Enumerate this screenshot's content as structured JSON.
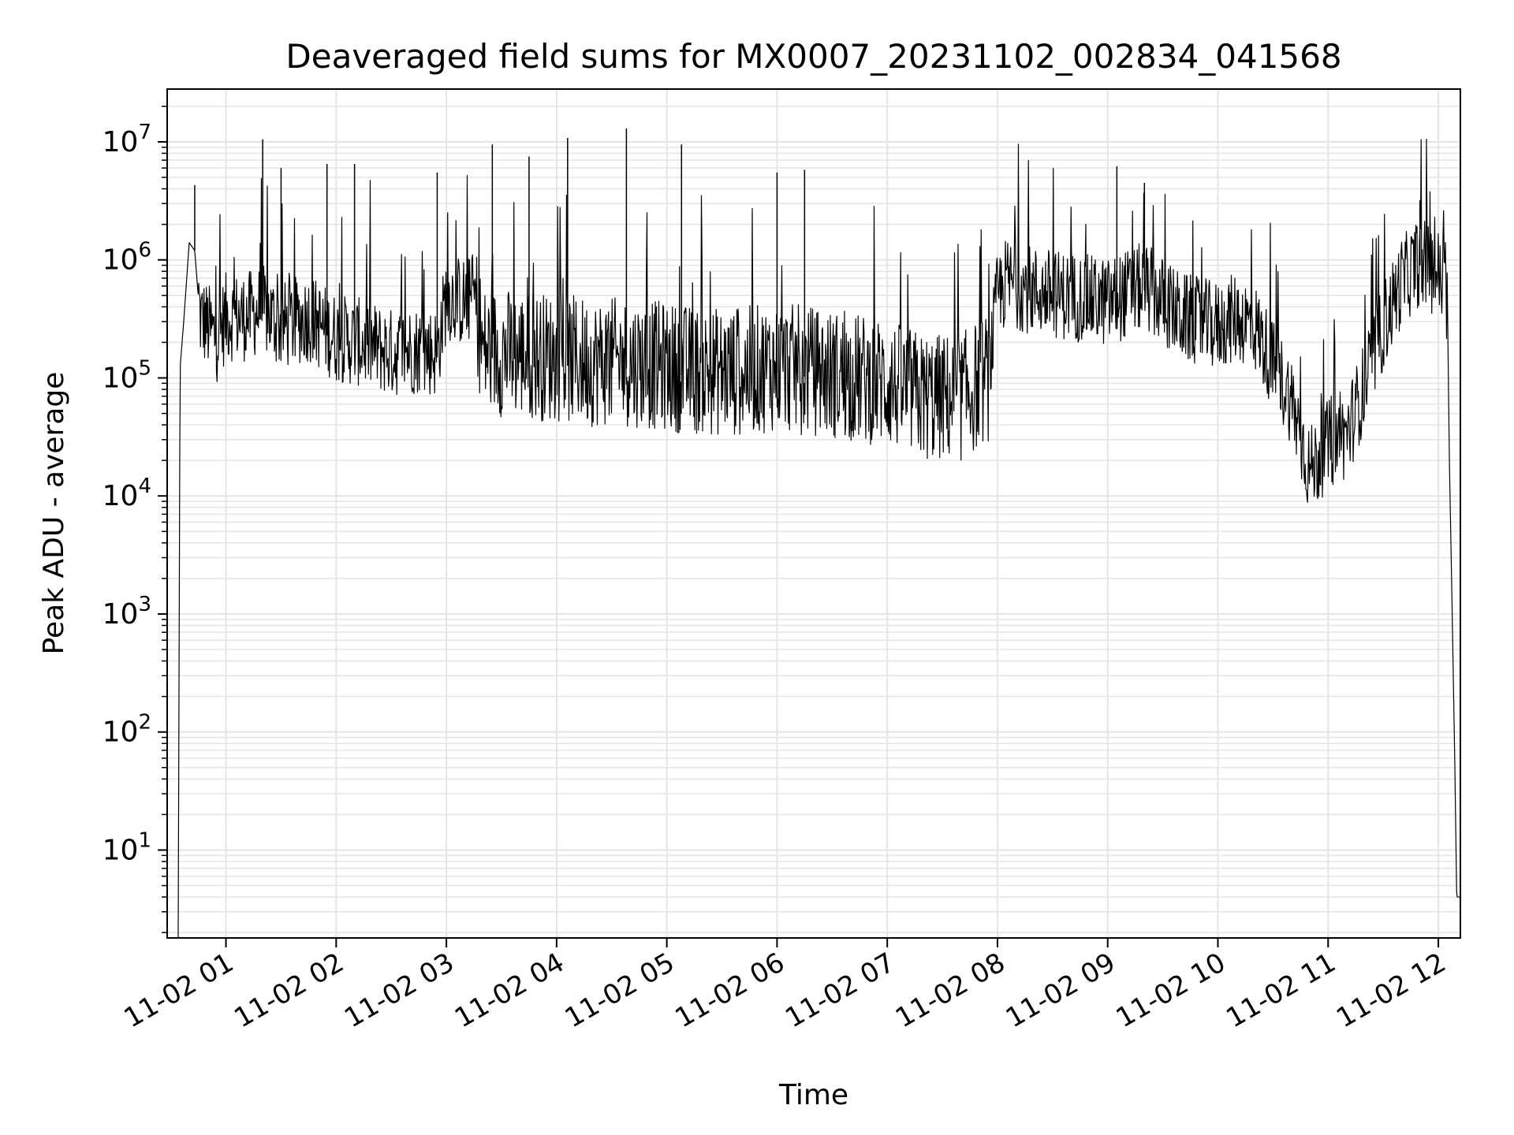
{
  "chart_data": {
    "type": "line",
    "title": "Deaveraged field sums for MX0007_20231102_002834_041568",
    "xlabel": "Time",
    "ylabel": "Peak ADU - average",
    "yscale": "log",
    "xlim": [
      "2023-11-02 00:28",
      "2023-11-02 12:12"
    ],
    "ylim": [
      1.8,
      28000000
    ],
    "grid": true,
    "line_color": "#000000",
    "grid_color": "#e5e5e5",
    "x_ticks": [
      {
        "value": "2023-11-02 01:00",
        "label": "11-02 01"
      },
      {
        "value": "2023-11-02 02:00",
        "label": "11-02 02"
      },
      {
        "value": "2023-11-02 03:00",
        "label": "11-02 03"
      },
      {
        "value": "2023-11-02 04:00",
        "label": "11-02 04"
      },
      {
        "value": "2023-11-02 05:00",
        "label": "11-02 05"
      },
      {
        "value": "2023-11-02 06:00",
        "label": "11-02 06"
      },
      {
        "value": "2023-11-02 07:00",
        "label": "11-02 07"
      },
      {
        "value": "2023-11-02 08:00",
        "label": "11-02 08"
      },
      {
        "value": "2023-11-02 09:00",
        "label": "11-02 09"
      },
      {
        "value": "2023-11-02 10:00",
        "label": "11-02 10"
      },
      {
        "value": "2023-11-02 11:00",
        "label": "11-02 11"
      },
      {
        "value": "2023-11-02 12:00",
        "label": "11-02 12"
      }
    ],
    "y_ticks": [
      {
        "value": 10,
        "base": "10",
        "exp": "1"
      },
      {
        "value": 100,
        "base": "10",
        "exp": "2"
      },
      {
        "value": 1000,
        "base": "10",
        "exp": "3"
      },
      {
        "value": 10000,
        "base": "10",
        "exp": "4"
      },
      {
        "value": 100000,
        "base": "10",
        "exp": "5"
      },
      {
        "value": 1000000,
        "base": "10",
        "exp": "6"
      },
      {
        "value": 10000000,
        "base": "10",
        "exp": "7"
      }
    ],
    "series": [
      {
        "x": [
          "2023-11-02 00:34",
          "2023-11-02 00:35",
          "2023-11-02 00:37",
          "2023-11-02 00:40",
          "2023-11-02 00:43",
          "2023-11-02 00:46",
          "2023-11-02 00:50",
          "2023-11-02 00:55",
          "2023-11-02 01:00",
          "2023-11-02 01:10",
          "2023-11-02 01:20",
          "2023-11-02 01:30",
          "2023-11-02 01:45",
          "2023-11-02 02:00",
          "2023-11-02 02:15",
          "2023-11-02 02:30",
          "2023-11-02 02:45",
          "2023-11-02 02:55",
          "2023-11-02 03:00",
          "2023-11-02 03:10",
          "2023-11-02 03:15",
          "2023-11-02 03:20",
          "2023-11-02 03:40",
          "2023-11-02 04:00",
          "2023-11-02 04:20",
          "2023-11-02 04:40",
          "2023-11-02 05:00",
          "2023-11-02 05:20",
          "2023-11-02 05:40",
          "2023-11-02 06:00",
          "2023-11-02 06:20",
          "2023-11-02 06:40",
          "2023-11-02 07:00",
          "2023-11-02 07:20",
          "2023-11-02 07:40",
          "2023-11-02 07:55",
          "2023-11-02 08:00",
          "2023-11-02 08:05",
          "2023-11-02 08:20",
          "2023-11-02 08:40",
          "2023-11-02 09:00",
          "2023-11-02 09:20",
          "2023-11-02 09:40",
          "2023-11-02 10:00",
          "2023-11-02 10:10",
          "2023-11-02 10:20",
          "2023-11-02 10:30",
          "2023-11-02 10:40",
          "2023-11-02 10:50",
          "2023-11-02 11:00",
          "2023-11-02 11:10",
          "2023-11-02 11:20",
          "2023-11-02 11:30",
          "2023-11-02 11:40",
          "2023-11-02 11:50",
          "2023-11-02 12:00",
          "2023-11-02 12:05",
          "2023-11-02 12:06",
          "2023-11-02 12:07",
          "2023-11-02 12:08",
          "2023-11-02 12:09",
          "2023-11-02 12:10",
          "2023-11-02 12:12"
        ],
        "y": [
          1.8,
          120000,
          300000,
          1400000,
          1200000,
          300000,
          250000,
          200000,
          300000,
          300000,
          350000,
          250000,
          300000,
          200000,
          180000,
          150000,
          160000,
          150000,
          450000,
          400000,
          450000,
          150000,
          140000,
          130000,
          120000,
          120000,
          110000,
          100000,
          100000,
          110000,
          100000,
          90000,
          80000,
          60000,
          60000,
          90000,
          450000,
          600000,
          500000,
          450000,
          400000,
          550000,
          300000,
          250000,
          300000,
          250000,
          120000,
          60000,
          15000,
          25000,
          30000,
          80000,
          250000,
          600000,
          900000,
          700000,
          400000,
          20000,
          3000,
          400,
          50,
          4,
          4
        ],
        "spikes": [
          {
            "x": "2023-11-02 00:43",
            "y": 4300000
          },
          {
            "x": "2023-11-02 01:20",
            "y": 10500000
          },
          {
            "x": "2023-11-02 01:30",
            "y": 6000000
          },
          {
            "x": "2023-11-02 01:55",
            "y": 6500000
          },
          {
            "x": "2023-11-02 02:10",
            "y": 6500000
          },
          {
            "x": "2023-11-02 02:55",
            "y": 5500000
          },
          {
            "x": "2023-11-02 03:25",
            "y": 9500000
          },
          {
            "x": "2023-11-02 03:45",
            "y": 7500000
          },
          {
            "x": "2023-11-02 04:06",
            "y": 10800000
          },
          {
            "x": "2023-11-02 04:38",
            "y": 13000000
          },
          {
            "x": "2023-11-02 05:08",
            "y": 9500000
          },
          {
            "x": "2023-11-02 06:00",
            "y": 5500000
          },
          {
            "x": "2023-11-02 06:15",
            "y": 5800000
          },
          {
            "x": "2023-11-02 09:05",
            "y": 6200000
          },
          {
            "x": "2023-11-02 09:20",
            "y": 4500000
          },
          {
            "x": "2023-11-02 11:50",
            "y": 3200000
          }
        ]
      }
    ]
  }
}
